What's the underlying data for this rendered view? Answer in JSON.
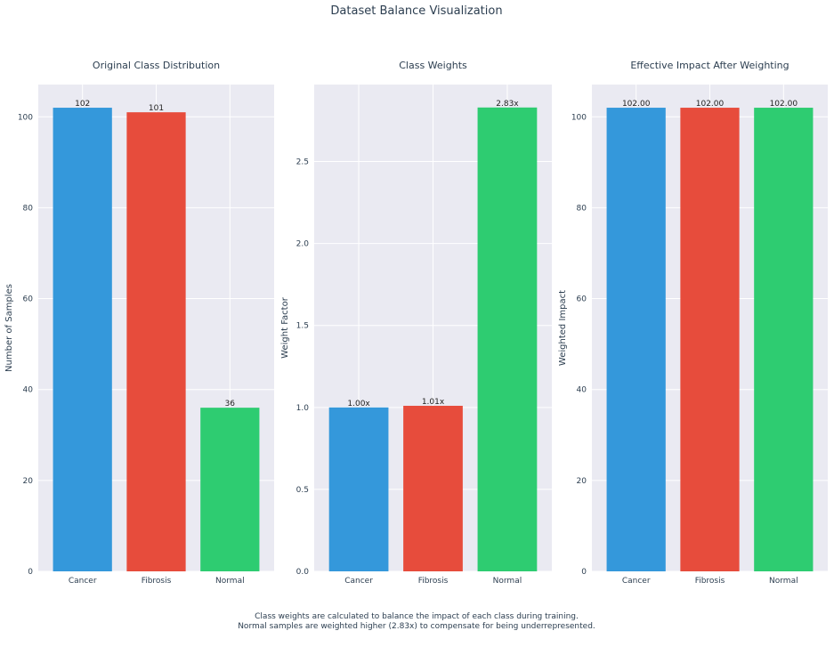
{
  "figure": {
    "title": "Dataset Balance Visualization",
    "footnote_lines": [
      "Class weights are calculated to balance the impact of each class during training.",
      "Normal samples are weighted higher (2.83x) to compensate for being underrepresented."
    ]
  },
  "colors": {
    "Cancer": "#3498db",
    "Fibrosis": "#e74c3c",
    "Normal": "#2ecc71",
    "panel_bg": "#eaeaf2",
    "grid": "#ffffff"
  },
  "chart_data": [
    {
      "type": "bar",
      "title": "Original Class Distribution",
      "ylabel": "Number of Samples",
      "categories": [
        "Cancer",
        "Fibrosis",
        "Normal"
      ],
      "values": [
        102,
        101,
        36
      ],
      "data_labels": [
        "102",
        "101",
        "36"
      ],
      "ylim": [
        0,
        107.1
      ],
      "yticks": [
        0,
        20,
        40,
        60,
        80,
        100
      ],
      "ytick_labels": [
        "0",
        "20",
        "40",
        "60",
        "80",
        "100"
      ],
      "grid": true
    },
    {
      "type": "bar",
      "title": "Class Weights",
      "ylabel": "Weight Factor",
      "categories": [
        "Cancer",
        "Fibrosis",
        "Normal"
      ],
      "values": [
        1.0,
        1.01,
        2.83
      ],
      "data_labels": [
        "1.00x",
        "1.01x",
        "2.83x"
      ],
      "ylim": [
        0,
        2.97
      ],
      "yticks": [
        0,
        0.5,
        1.0,
        1.5,
        2.0,
        2.5
      ],
      "ytick_labels": [
        "0.0",
        "0.5",
        "1.0",
        "1.5",
        "2.0",
        "2.5"
      ],
      "grid": true
    },
    {
      "type": "bar",
      "title": "Effective Impact After Weighting",
      "ylabel": "Weighted Impact",
      "categories": [
        "Cancer",
        "Fibrosis",
        "Normal"
      ],
      "values": [
        102.0,
        102.0,
        102.0
      ],
      "data_labels": [
        "102.00",
        "102.00",
        "102.00"
      ],
      "ylim": [
        0,
        107.1
      ],
      "yticks": [
        0,
        20,
        40,
        60,
        80,
        100
      ],
      "ytick_labels": [
        "0",
        "20",
        "40",
        "60",
        "80",
        "100"
      ],
      "grid": true
    }
  ]
}
